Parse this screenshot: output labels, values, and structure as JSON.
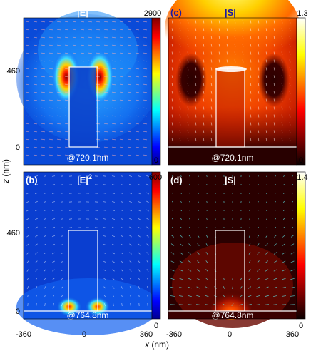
{
  "figure": {
    "ylabel_italic": "z",
    "ylabel_unit": " (nm)",
    "xlabel_italic": "x",
    "xlabel_unit": " (nm)"
  },
  "chart_data": [
    {
      "type": "heatmap",
      "panel": "(a)",
      "title": "|E|",
      "title_sup": "2",
      "quantity": "electric field intensity",
      "annotation": "@720.1nm",
      "colormap": "jet",
      "colorbar": {
        "min": 0,
        "max": 2900,
        "min_label": "0",
        "max_label": "2900"
      },
      "y_ticks": [
        {
          "value": 460,
          "label": "460"
        },
        {
          "value": 0,
          "label": "0"
        }
      ],
      "x_ticks": [],
      "hotspots": [
        {
          "x": -75,
          "z": 420
        },
        {
          "x": 75,
          "z": 420
        }
      ],
      "structure": "rectangular pillar outline from x = -75 to 75 nm, rising from z = 0"
    },
    {
      "type": "heatmap",
      "panel": "(c)",
      "title": "|S|",
      "quantity": "Poynting vector magnitude",
      "annotation": "@720.1nm",
      "colormap": "hot",
      "colorbar": {
        "min": 0,
        "max": 1.3,
        "min_label": "0",
        "max_label": "1.3"
      },
      "y_ticks": [],
      "x_ticks": [],
      "structure": "rectangular pillar outline from x = -75 to 75 nm with substrate line at z = 0"
    },
    {
      "type": "heatmap",
      "panel": "(b)",
      "title": "|E|",
      "title_sup": "2",
      "quantity": "electric field intensity",
      "annotation": "@764.8nm",
      "colormap": "jet",
      "colorbar": {
        "min": 0,
        "max": 600,
        "min_label": "0",
        "max_label": "600"
      },
      "y_ticks": [
        {
          "value": 460,
          "label": "460"
        },
        {
          "value": 0,
          "label": "0"
        }
      ],
      "x_ticks": [
        {
          "value": -360,
          "label": "-360"
        },
        {
          "value": 0,
          "label": "0"
        },
        {
          "value": 360,
          "label": "360"
        }
      ],
      "hotspots": [
        {
          "x": -75,
          "z": 10
        },
        {
          "x": 75,
          "z": 10
        }
      ],
      "structure": "rectangular pillar outline from x = -75 to 75 nm with substrate line at z = 0"
    },
    {
      "type": "heatmap",
      "panel": "(d)",
      "title": "|S|",
      "quantity": "Poynting vector magnitude",
      "annotation": "@764.8nm",
      "colormap": "hot",
      "colorbar": {
        "min": 0,
        "max": 1.4,
        "min_label": "0",
        "max_label": "1.4"
      },
      "y_ticks": [],
      "x_ticks": [
        {
          "value": -360,
          "label": "-360"
        },
        {
          "value": 0,
          "label": "0"
        },
        {
          "value": 360,
          "label": "360"
        }
      ],
      "structure": "rectangular pillar outline from x = -75 to 75 nm with substrate line at z = 0"
    }
  ]
}
